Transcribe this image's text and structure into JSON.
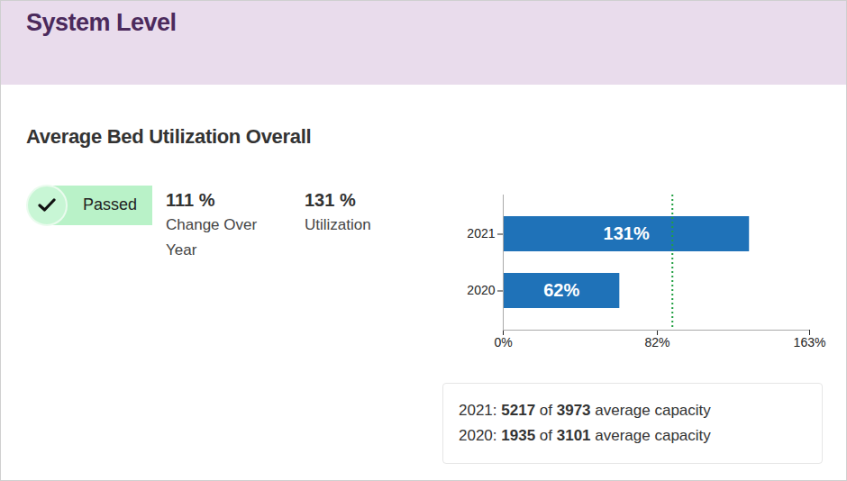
{
  "header": {
    "title": "System Level"
  },
  "card": {
    "title": "Average Bed Utilization Overall",
    "status": "Passed",
    "metrics": [
      {
        "value": "111 %",
        "label": "Change Over Year"
      },
      {
        "value": "131 %",
        "label": "Utilization"
      }
    ],
    "summary": [
      {
        "year": "2021:",
        "used": 5217,
        "of": "of",
        "capacity": 3973,
        "suffix": "average capacity"
      },
      {
        "year": "2020:",
        "used": 1935,
        "of": "of",
        "capacity": 3101,
        "suffix": "average capacity"
      }
    ]
  },
  "chart_data": {
    "type": "bar",
    "orientation": "horizontal",
    "categories": [
      "2021",
      "2020"
    ],
    "values": [
      131,
      62
    ],
    "value_labels": [
      "131%",
      "62%"
    ],
    "data_labels": true,
    "color": "#1f72b8",
    "xlim": [
      0,
      163
    ],
    "xticks": [
      {
        "value": 0,
        "label": "0%"
      },
      {
        "value": 82,
        "label": "82%"
      },
      {
        "value": 163,
        "label": "163%"
      }
    ],
    "threshold": 90
  }
}
